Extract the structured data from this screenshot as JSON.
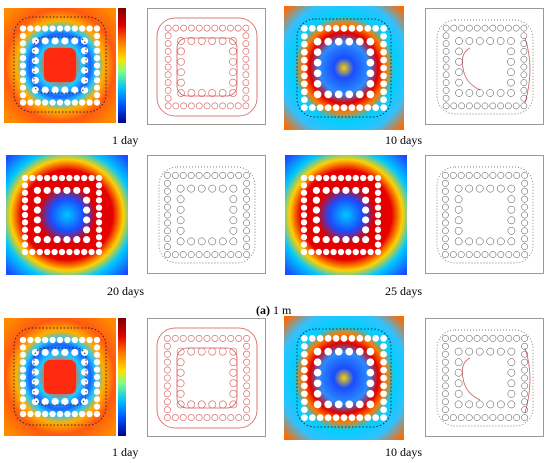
{
  "figure": {
    "captions": {
      "r1_left": "1 day",
      "r1_right": "10 days",
      "r2_left": "20 days",
      "r2_right": "25 days",
      "r4_left": "1 day",
      "r4_right": "10 days"
    },
    "subfigure": {
      "label": "(a)",
      "text": " 1 m"
    }
  },
  "colors": {
    "contour": "#d45a5a",
    "frame": "#9a9a9a",
    "hole": "#ffffff",
    "dots": "#2d2d2d",
    "colorbar": [
      "#7a0000",
      "#e00000",
      "#ff7a00",
      "#ffe000",
      "#80ff80",
      "#00c0ff",
      "#0050ff",
      "#00008a"
    ]
  }
}
